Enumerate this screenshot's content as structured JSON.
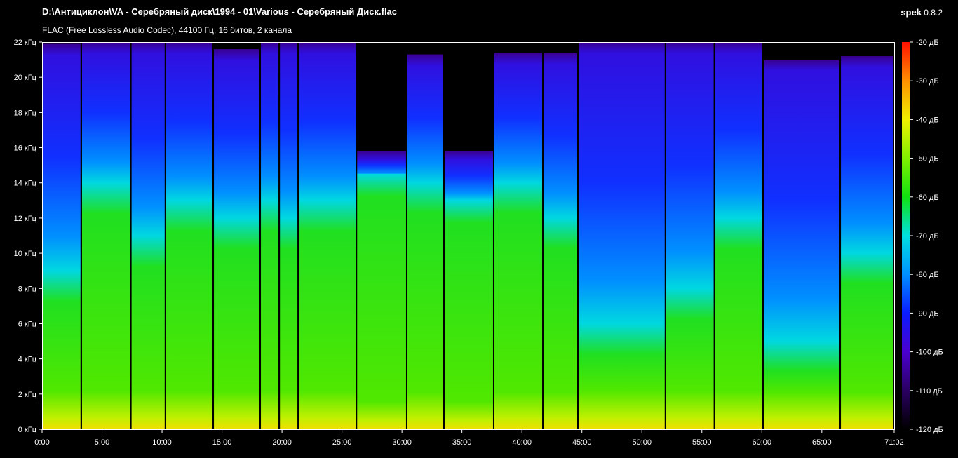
{
  "header": {
    "file_path": "D:\\Антициклон\\VA - Серебряный диск\\1994 - 01\\Various - Серебряный Диск.flac",
    "file_info": "FLAC (Free Lossless Audio Codec), 44100 Гц, 16 битов, 2 канала",
    "app_name": "spek",
    "app_version": "0.8.2"
  },
  "chart_data": {
    "type": "heatmap",
    "xlabel": "",
    "ylabel": "",
    "xlim": [
      "0:00",
      "71:02"
    ],
    "ylim_khz": [
      0,
      22
    ],
    "x_ticks": [
      "0:00",
      "5:00",
      "10:00",
      "15:00",
      "20:00",
      "25:00",
      "30:00",
      "35:00",
      "40:00",
      "45:00",
      "50:00",
      "55:00",
      "60:00",
      "65:00",
      "71:02"
    ],
    "y_ticks": [
      "0 кГц",
      "2 кГц",
      "4 кГц",
      "6 кГц",
      "8 кГц",
      "10 кГц",
      "12 кГц",
      "14 кГц",
      "16 кГц",
      "18 кГц",
      "20 кГц",
      "22 кГц"
    ],
    "colorbar_ticks": [
      "-20 дБ",
      "-30 дБ",
      "-40 дБ",
      "-50 дБ",
      "-60 дБ",
      "-70 дБ",
      "-80 дБ",
      "-90 дБ",
      "-100 дБ",
      "-110 дБ",
      "-120 дБ"
    ],
    "colorbar_range_db": [
      -120,
      -20
    ],
    "colorscale": [
      "#000000",
      "#2a0060",
      "#4b00d0",
      "#0a1cff",
      "#0090ff",
      "#00e0e0",
      "#10e010",
      "#80f000",
      "#f0f000",
      "#ff9000",
      "#ff1000"
    ],
    "tracks": [
      {
        "start": "0:00",
        "end": "3:16",
        "cutoff_khz": 21.9,
        "minus80db_khz": 9
      },
      {
        "start": "3:16",
        "end": "7:24",
        "cutoff_khz": 22,
        "minus80db_khz": 14
      },
      {
        "start": "7:24",
        "end": "10:17",
        "cutoff_khz": 22,
        "minus80db_khz": 11
      },
      {
        "start": "10:17",
        "end": "14:16",
        "cutoff_khz": 22,
        "minus80db_khz": 13
      },
      {
        "start": "14:16",
        "end": "18:11",
        "cutoff_khz": 21.6,
        "minus80db_khz": 12
      },
      {
        "start": "18:11",
        "end": "19:46",
        "cutoff_khz": 22,
        "minus80db_khz": 13
      },
      {
        "start": "19:46",
        "end": "21:21",
        "cutoff_khz": 22,
        "minus80db_khz": 12
      },
      {
        "start": "21:21",
        "end": "26:12",
        "cutoff_khz": 22,
        "minus80db_khz": 13
      },
      {
        "start": "26:12",
        "end": "30:24",
        "cutoff_khz": 15.8,
        "minus80db_khz": 14.5
      },
      {
        "start": "30:24",
        "end": "33:30",
        "cutoff_khz": 21.3,
        "minus80db_khz": 14
      },
      {
        "start": "33:30",
        "end": "37:39",
        "cutoff_khz": 15.8,
        "minus80db_khz": 13
      },
      {
        "start": "37:39",
        "end": "41:45",
        "cutoff_khz": 21.4,
        "minus80db_khz": 14
      },
      {
        "start": "41:45",
        "end": "44:40",
        "cutoff_khz": 21.4,
        "minus80db_khz": 12
      },
      {
        "start": "44:40",
        "end": "51:58",
        "cutoff_khz": 22,
        "minus80db_khz": 6
      },
      {
        "start": "51:58",
        "end": "56:03",
        "cutoff_khz": 22,
        "minus80db_khz": 8
      },
      {
        "start": "56:03",
        "end": "60:06",
        "cutoff_khz": 22,
        "minus80db_khz": 12
      },
      {
        "start": "60:06",
        "end": "66:32",
        "cutoff_khz": 21,
        "minus80db_khz": 5
      },
      {
        "start": "66:32",
        "end": "71:02",
        "cutoff_khz": 21.2,
        "minus80db_khz": 10
      }
    ]
  }
}
